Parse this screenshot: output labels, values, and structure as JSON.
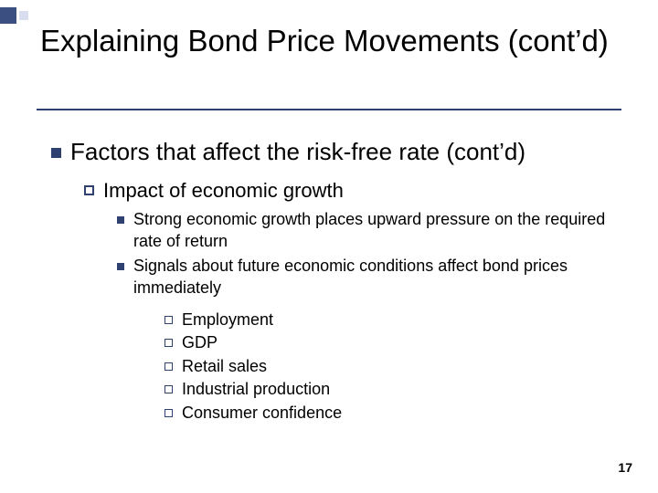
{
  "colors": {
    "accent": "#2f4170",
    "deco_dark": "#3b4f81",
    "deco_light": "#d8deee",
    "bg": "#ffffff",
    "text": "#000000"
  },
  "title": "Explaining Bond Price Movements (cont’d)",
  "page_number": "17",
  "bullets": {
    "l1": "Factors that affect the risk-free rate (cont’d)",
    "l2": "Impact of economic growth",
    "l3a": "Strong economic growth places upward pressure on the required rate of return",
    "l3b": "Signals about future economic conditions affect bond prices immediately",
    "l4": [
      "Employment",
      "GDP",
      "Retail sales",
      "Industrial production",
      "Consumer confidence"
    ]
  }
}
